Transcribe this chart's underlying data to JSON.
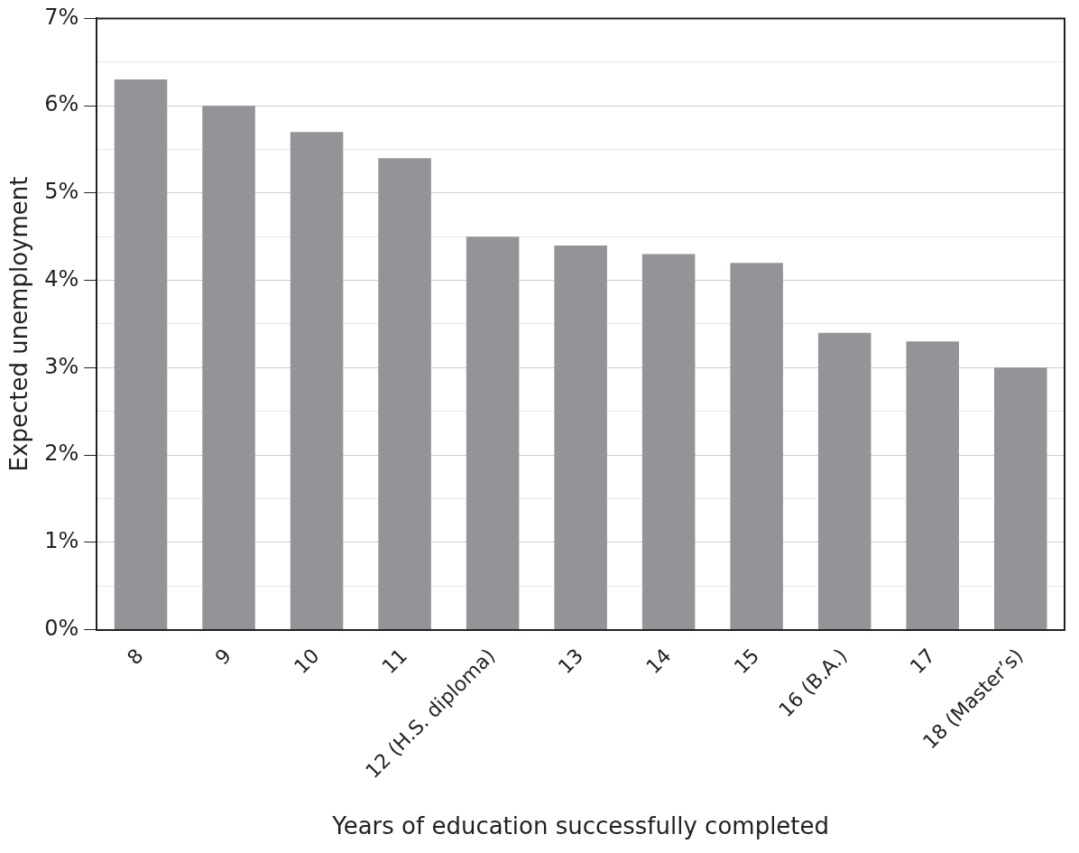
{
  "chart_data": {
    "type": "bar",
    "xlabel": "Years of education successfully completed",
    "ylabel": "Expected unemployment",
    "categories": [
      "8",
      "9",
      "10",
      "11",
      "12 (H.S. diploma)",
      "13",
      "14",
      "15",
      "16 (B.A.)",
      "17",
      "18 (Master’s)"
    ],
    "values": [
      6.3,
      6.0,
      5.7,
      5.4,
      4.5,
      4.4,
      4.3,
      4.2,
      3.4,
      3.3,
      3.0
    ],
    "color": "#939498",
    "ylim": [
      0,
      7
    ],
    "yticks": [
      {
        "value": 0,
        "label": "0%"
      },
      {
        "value": 0.5,
        "label": null
      },
      {
        "value": 1,
        "label": "1%"
      },
      {
        "value": 1.5,
        "label": null
      },
      {
        "value": 2,
        "label": "2%"
      },
      {
        "value": 2.5,
        "label": null
      },
      {
        "value": 3,
        "label": "3%"
      },
      {
        "value": 3.5,
        "label": null
      },
      {
        "value": 4,
        "label": "4%"
      },
      {
        "value": 4.5,
        "label": null
      },
      {
        "value": 5,
        "label": "5%"
      },
      {
        "value": 5.5,
        "label": null
      },
      {
        "value": 6,
        "label": "6%"
      },
      {
        "value": 6.5,
        "label": null
      },
      {
        "value": 7,
        "label": "7%"
      }
    ],
    "grid": "y",
    "legend": false
  }
}
